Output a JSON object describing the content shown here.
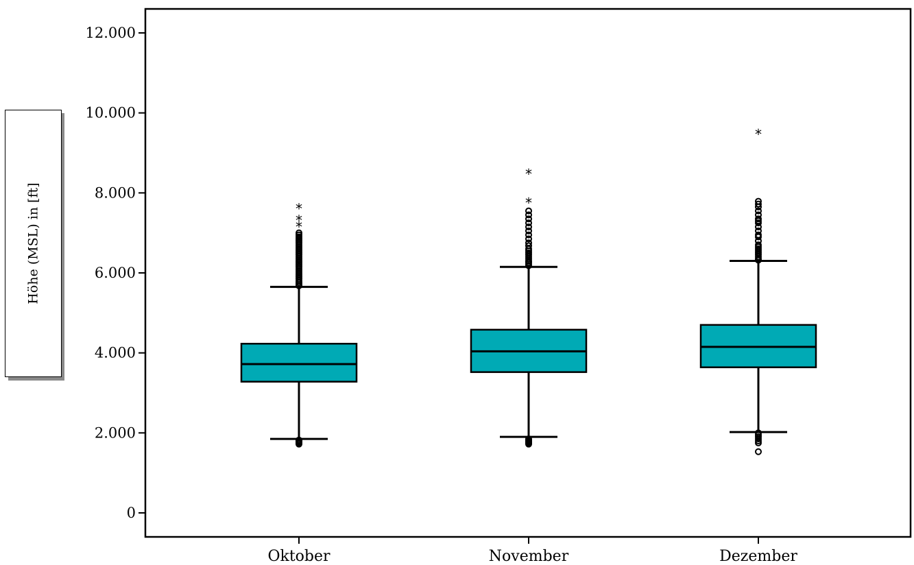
{
  "chart_data": {
    "type": "boxplot",
    "ylabel": "Höhe (MSL) in [ft]",
    "xlabel": "",
    "ylim": [
      -600,
      12600
    ],
    "yticks": [
      0,
      2000,
      4000,
      6000,
      8000,
      10000,
      12000
    ],
    "ytick_labels": [
      "0",
      "2.000",
      "4.000",
      "6.000",
      "8.000",
      "10.000",
      "12.000"
    ],
    "box_color": "#00aab5",
    "categories": [
      "Oktober",
      "November",
      "Dezember"
    ],
    "boxes": [
      {
        "category": "Oktober",
        "whisker_low": 1850,
        "q1": 3280,
        "median": 3720,
        "q3": 4230,
        "whisker_high": 5650,
        "outliers": [
          1720,
          1740,
          1760,
          1780,
          1800,
          1820,
          5680,
          5720,
          5760,
          5800,
          5850,
          5900,
          5950,
          6000,
          6050,
          6100,
          6150,
          6200,
          6250,
          6300,
          6350,
          6400,
          6450,
          6500,
          6550,
          6600,
          6650,
          6700,
          6750,
          6800,
          6850,
          6900,
          6950,
          7000
        ],
        "extremes": [
          7180,
          7350,
          7640
        ]
      },
      {
        "category": "November",
        "whisker_low": 1900,
        "q1": 3520,
        "median": 4040,
        "q3": 4580,
        "whisker_high": 6150,
        "outliers": [
          1720,
          1740,
          1760,
          1780,
          1800,
          1820,
          1850,
          6180,
          6220,
          6260,
          6300,
          6350,
          6400,
          6450,
          6500,
          6550,
          6600,
          6680,
          6750,
          6850,
          6950,
          7050,
          7150,
          7250,
          7350,
          7450,
          7550
        ],
        "extremes": [
          7780,
          8500
        ]
      },
      {
        "category": "Dezember",
        "whisker_low": 2020,
        "q1": 3640,
        "median": 4150,
        "q3": 4700,
        "whisker_high": 6300,
        "outliers": [
          1530,
          1750,
          1800,
          1850,
          1900,
          1950,
          2000,
          6320,
          6350,
          6400,
          6450,
          6500,
          6550,
          6600,
          6650,
          6700,
          6800,
          6900,
          6950,
          7050,
          7150,
          7250,
          7300,
          7350,
          7450,
          7550,
          7650,
          7720,
          7790
        ],
        "extremes": [
          9500
        ]
      }
    ]
  }
}
